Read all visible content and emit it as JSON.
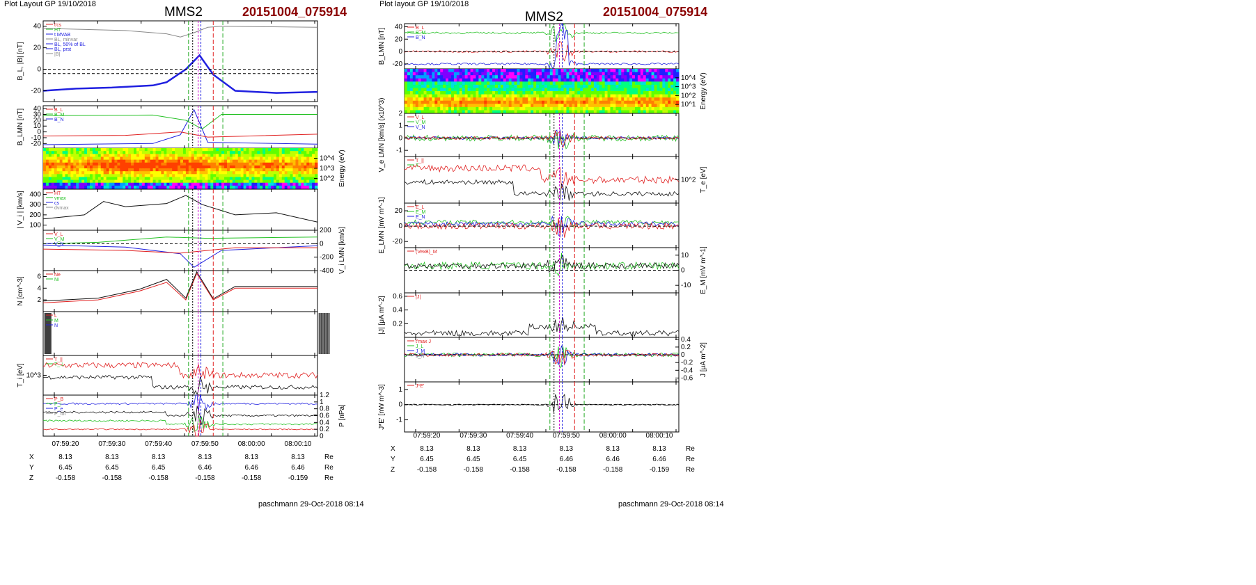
{
  "left": {
    "header": "Plot Layout GP 19/10/2018",
    "title": "MMS2",
    "event_id": "20151004_075914",
    "footer": "paschmann 29-Oct-2018 08:14"
  },
  "right": {
    "header": "Plot layout GP 19/10/2018",
    "title": "MMS2",
    "event_id": "20151004_075914",
    "footer": "paschmann 29-Oct-2018 08:14"
  },
  "time_axis": {
    "ticks": [
      "07:59:20",
      "07:59:30",
      "07:59:40",
      "07:59:50",
      "08:00:00",
      "08:00:10"
    ]
  },
  "ephemeris": {
    "rows": [
      {
        "label": "X",
        "values": [
          "8.13",
          "8.13",
          "8.13",
          "8.13",
          "8.13",
          "8.13"
        ],
        "unit": "Re"
      },
      {
        "label": "Y",
        "values": [
          "6.45",
          "6.45",
          "6.45",
          "6.46",
          "6.46",
          "6.46"
        ],
        "unit": "Re"
      },
      {
        "label": "Z",
        "values": [
          "-0.158",
          "-0.158",
          "-0.158",
          "-0.158",
          "-0.158",
          "-0.159"
        ],
        "unit": "Re"
      }
    ]
  },
  "colors": {
    "red": "#e02020",
    "green": "#22c022",
    "blue": "#2020e0",
    "black": "#111111",
    "magenta": "#cc00cc",
    "gray": "#888888",
    "title_red": "#8b0000"
  },
  "chart_data": [
    {
      "id": "left-bl",
      "type": "line",
      "ylabel": "B_L, |B| [nT]",
      "ylim": [
        -30,
        45
      ],
      "yticks": [
        -20,
        0,
        20,
        40
      ],
      "legend": [
        "t'cs",
        "HT",
        "t MVAB",
        "BL, minvar",
        "BL, 50% of BL",
        "BL, prst",
        "|B|"
      ],
      "series": [
        {
          "name": "|B|",
          "color": "gray",
          "points": [
            [
              0,
              38
            ],
            [
              0.3,
              36
            ],
            [
              0.45,
              33
            ],
            [
              0.5,
              30
            ],
            [
              0.55,
              34
            ],
            [
              0.6,
              39
            ],
            [
              0.65,
              40
            ],
            [
              1,
              39
            ]
          ]
        },
        {
          "name": "BL, prst",
          "color": "blue",
          "points": [
            [
              0,
              -20
            ],
            [
              0.12,
              -18
            ],
            [
              0.25,
              -17
            ],
            [
              0.4,
              -15
            ],
            [
              0.45,
              -12
            ],
            [
              0.52,
              0
            ],
            [
              0.57,
              13
            ],
            [
              0.62,
              -5
            ],
            [
              0.7,
              -20
            ],
            [
              0.85,
              -22
            ],
            [
              1,
              -21
            ]
          ]
        }
      ],
      "hlines": [
        0,
        -4
      ]
    },
    {
      "id": "left-blmn",
      "type": "line",
      "ylabel": "B_LMN [nT]",
      "ylim": [
        -28,
        45
      ],
      "yticks": [
        -20,
        -10,
        0,
        10,
        20,
        30,
        40
      ],
      "legend": [
        "B_L",
        "B_M",
        "B_N"
      ],
      "series": [
        {
          "name": "B_L",
          "color": "blue",
          "points": [
            [
              0,
              -22
            ],
            [
              0.4,
              -20
            ],
            [
              0.5,
              -5
            ],
            [
              0.55,
              38
            ],
            [
              0.6,
              -18
            ],
            [
              1,
              -21
            ]
          ]
        },
        {
          "name": "B_M",
          "color": "green",
          "points": [
            [
              0,
              28
            ],
            [
              0.4,
              29
            ],
            [
              0.52,
              20
            ],
            [
              0.58,
              5
            ],
            [
              0.65,
              30
            ],
            [
              1,
              30
            ]
          ]
        },
        {
          "name": "B_N",
          "color": "red",
          "points": [
            [
              0,
              -7
            ],
            [
              0.3,
              -6
            ],
            [
              0.5,
              0
            ],
            [
              0.6,
              -9
            ],
            [
              1,
              -4
            ]
          ]
        }
      ]
    },
    {
      "id": "left-spectrogram",
      "type": "heatmap",
      "ylabel": "Energy (eV)",
      "yticks": [
        "10^2",
        "10^3",
        "10^4"
      ]
    },
    {
      "id": "left-vi",
      "type": "line",
      "ylabel": "| V_i | [km/s]",
      "ylim": [
        50,
        450
      ],
      "yticks": [
        100,
        200,
        300,
        400
      ],
      "legend": [
        "HT",
        "vmax",
        "cs",
        "dvmax"
      ],
      "series": [
        {
          "name": "|Vi|",
          "color": "black",
          "points": [
            [
              0,
              160
            ],
            [
              0.15,
              200
            ],
            [
              0.22,
              330
            ],
            [
              0.3,
              280
            ],
            [
              0.45,
              310
            ],
            [
              0.52,
              390
            ],
            [
              0.58,
              300
            ],
            [
              0.7,
              200
            ],
            [
              0.85,
              220
            ],
            [
              1,
              130
            ]
          ]
        }
      ]
    },
    {
      "id": "left-vilmn",
      "type": "line",
      "ylabel": "V_i LMN [km/s]",
      "ylim": [
        -400,
        200
      ],
      "yticks": [
        -400,
        -200,
        0,
        200
      ],
      "legend": [
        "V_L",
        "V_M",
        "V_N"
      ],
      "series": [
        {
          "name": "V_L",
          "color": "blue",
          "points": [
            [
              0,
              -20
            ],
            [
              0.3,
              -50
            ],
            [
              0.5,
              -150
            ],
            [
              0.55,
              -350
            ],
            [
              0.65,
              -100
            ],
            [
              1,
              -30
            ]
          ]
        },
        {
          "name": "V_M",
          "color": "green",
          "points": [
            [
              0,
              0
            ],
            [
              0.2,
              20
            ],
            [
              0.45,
              100
            ],
            [
              0.6,
              80
            ],
            [
              1,
              100
            ]
          ]
        },
        {
          "name": "V_N",
          "color": "red",
          "points": [
            [
              0,
              -80
            ],
            [
              0.3,
              -100
            ],
            [
              0.5,
              -140
            ],
            [
              0.7,
              -60
            ],
            [
              1,
              -60
            ]
          ]
        }
      ],
      "hlines": [
        0
      ]
    },
    {
      "id": "left-density",
      "type": "line",
      "ylabel": "N [cm^-3]",
      "ylim": [
        0,
        7
      ],
      "yticks": [
        2,
        4,
        6
      ],
      "legend": [
        "Ne",
        "Ni"
      ],
      "series": [
        {
          "name": "Ne",
          "color": "red",
          "points": [
            [
              0,
              1.5
            ],
            [
              0.2,
              2
            ],
            [
              0.35,
              3.5
            ],
            [
              0.45,
              5
            ],
            [
              0.52,
              2
            ],
            [
              0.56,
              6.5
            ],
            [
              0.62,
              2
            ],
            [
              0.7,
              4
            ],
            [
              1,
              4
            ]
          ]
        },
        {
          "name": "Ni",
          "color": "black",
          "points": [
            [
              0,
              1.8
            ],
            [
              0.2,
              2.3
            ],
            [
              0.35,
              3.8
            ],
            [
              0.45,
              5.5
            ],
            [
              0.52,
              2.3
            ],
            [
              0.56,
              6.8
            ],
            [
              0.62,
              2.2
            ],
            [
              0.7,
              4.3
            ],
            [
              1,
              4.3
            ]
          ]
        }
      ]
    },
    {
      "id": "left-angles",
      "type": "line",
      "ylabel": "",
      "legend": [
        "L",
        "M",
        "N"
      ]
    },
    {
      "id": "left-ti",
      "type": "line",
      "ylabel": "T_i [eV]",
      "yticks": [
        "10^3"
      ],
      "legend": [
        "T_||",
        "T_⊥"
      ]
    },
    {
      "id": "left-pressure",
      "type": "line",
      "ylabel": "P [nPa]",
      "ylim": [
        0,
        1.2
      ],
      "yticks": [
        0,
        0.2,
        0.4,
        0.6,
        0.8,
        1.0,
        1.2
      ],
      "legend": [
        "P_B",
        "P_i",
        "P_e",
        "P_tot"
      ]
    },
    {
      "id": "right-blmn",
      "type": "line",
      "ylabel": "B_LMN [nT]",
      "ylim": [
        -28,
        45
      ],
      "yticks": [
        -20,
        0,
        20,
        40
      ],
      "legend": [
        "B_L",
        "B_M",
        "B_N"
      ]
    },
    {
      "id": "right-spectrogram",
      "type": "heatmap",
      "ylabel": "Energy (eV)",
      "yticks": [
        "10^1",
        "10^2",
        "10^3",
        "10^4"
      ]
    },
    {
      "id": "right-ve",
      "type": "line",
      "ylabel": "V_e LMN [km/s] (x10^3)",
      "ylim": [
        -1.5,
        2
      ],
      "yticks": [
        -1,
        0,
        1,
        2
      ],
      "legend": [
        "V_L",
        "V_M",
        "V_N"
      ]
    },
    {
      "id": "right-te",
      "type": "line",
      "ylabel": "T_e [eV]",
      "yticks": [
        "10^2"
      ],
      "legend": [
        "T_||",
        "T"
      ]
    },
    {
      "id": "right-e",
      "type": "line",
      "ylabel": "E_LMN [mV m^-1]",
      "ylim": [
        -28,
        30
      ],
      "yticks": [
        -20,
        0,
        20
      ],
      "legend": [
        "E_L",
        "E_M",
        "E_N"
      ]
    },
    {
      "id": "right-em",
      "type": "line",
      "ylabel": "E_M [mV m^-1]",
      "ylim": [
        -15,
        15
      ],
      "yticks": [
        -10,
        0,
        10
      ],
      "legend": [
        "(VexB)_M"
      ]
    },
    {
      "id": "right-j",
      "type": "line",
      "ylabel": "|J| [μA m^-2]",
      "ylim": [
        0,
        0.65
      ],
      "yticks": [
        0.2,
        0.4,
        0.6
      ],
      "legend": [
        "|J|"
      ]
    },
    {
      "id": "right-jlmn",
      "type": "line",
      "ylabel": "J [μA m^-2]",
      "ylim": [
        -0.7,
        0.45
      ],
      "yticks": [
        -0.6,
        -0.4,
        -0.2,
        0.0,
        0.2,
        0.4
      ],
      "legend": [
        "t'max J",
        "J_L",
        "J_M",
        "J_N"
      ]
    },
    {
      "id": "right-jdote",
      "type": "line",
      "ylabel": "J*E' [nW m^-3]",
      "ylim": [
        -1.8,
        1.5
      ],
      "yticks": [
        -1,
        0,
        1
      ],
      "legend": [
        "J*E'"
      ]
    }
  ]
}
